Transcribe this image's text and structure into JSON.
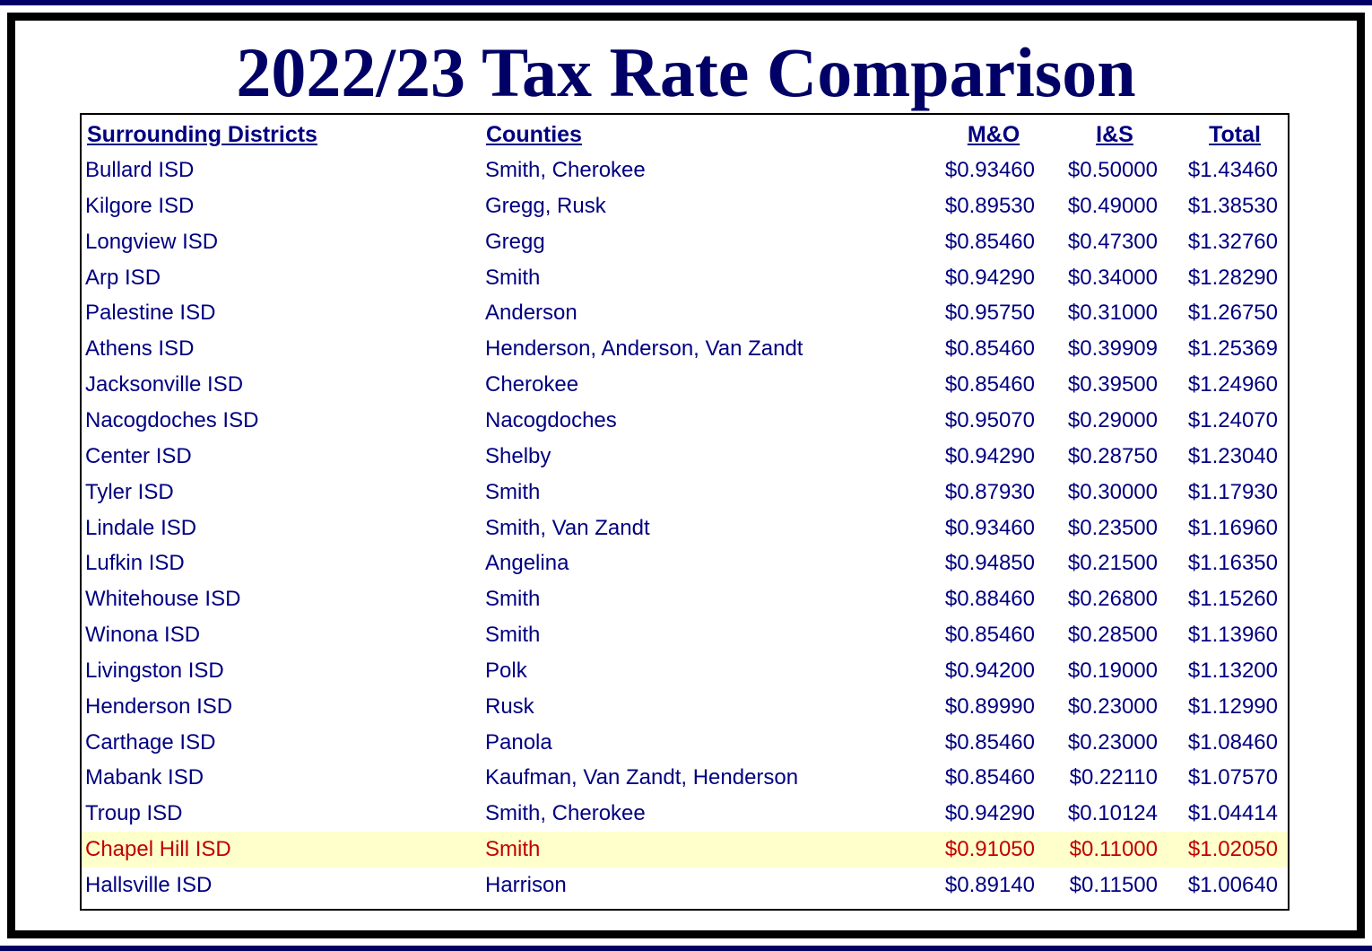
{
  "title": "2022/23 Tax Rate Comparison",
  "headers": {
    "district": "Surrounding Districts",
    "county": "Counties",
    "mo": "M&O",
    "is": "I&S",
    "total": "Total"
  },
  "highlight_color": "#ffffcc",
  "highlight_text_color": "#c00000",
  "text_color": "#000080",
  "rows": [
    {
      "district": "Bullard ISD",
      "county": "Smith, Cherokee",
      "mo": "$0.93460",
      "is": "$0.50000",
      "total": "$1.43460"
    },
    {
      "district": "Kilgore ISD",
      "county": "Gregg, Rusk",
      "mo": "$0.89530",
      "is": "$0.49000",
      "total": "$1.38530"
    },
    {
      "district": "Longview ISD",
      "county": "Gregg",
      "mo": "$0.85460",
      "is": "$0.47300",
      "total": "$1.32760"
    },
    {
      "district": "Arp ISD",
      "county": "Smith",
      "mo": "$0.94290",
      "is": "$0.34000",
      "total": "$1.28290"
    },
    {
      "district": "Palestine ISD",
      "county": "Anderson",
      "mo": "$0.95750",
      "is": "$0.31000",
      "total": "$1.26750"
    },
    {
      "district": "Athens ISD",
      "county": "Henderson, Anderson, Van Zandt",
      "mo": "$0.85460",
      "is": "$0.39909",
      "total": "$1.25369"
    },
    {
      "district": "Jacksonville ISD",
      "county": "Cherokee",
      "mo": "$0.85460",
      "is": "$0.39500",
      "total": "$1.24960"
    },
    {
      "district": "Nacogdoches ISD",
      "county": "Nacogdoches",
      "mo": "$0.95070",
      "is": "$0.29000",
      "total": "$1.24070"
    },
    {
      "district": "Center ISD",
      "county": "Shelby",
      "mo": "$0.94290",
      "is": "$0.28750",
      "total": "$1.23040"
    },
    {
      "district": "Tyler ISD",
      "county": "Smith",
      "mo": "$0.87930",
      "is": "$0.30000",
      "total": "$1.17930"
    },
    {
      "district": "Lindale ISD",
      "county": "Smith, Van Zandt",
      "mo": "$0.93460",
      "is": "$0.23500",
      "total": "$1.16960"
    },
    {
      "district": "Lufkin ISD",
      "county": "Angelina",
      "mo": "$0.94850",
      "is": "$0.21500",
      "total": "$1.16350"
    },
    {
      "district": "Whitehouse ISD",
      "county": "Smith",
      "mo": "$0.88460",
      "is": "$0.26800",
      "total": "$1.15260"
    },
    {
      "district": "Winona ISD",
      "county": "Smith",
      "mo": "$0.85460",
      "is": "$0.28500",
      "total": "$1.13960"
    },
    {
      "district": "Livingston ISD",
      "county": "Polk",
      "mo": "$0.94200",
      "is": "$0.19000",
      "total": "$1.13200"
    },
    {
      "district": "Henderson ISD",
      "county": "Rusk",
      "mo": "$0.89990",
      "is": "$0.23000",
      "total": "$1.12990"
    },
    {
      "district": "Carthage ISD",
      "county": "Panola",
      "mo": "$0.85460",
      "is": "$0.23000",
      "total": "$1.08460"
    },
    {
      "district": "Mabank ISD",
      "county": "Kaufman, Van Zandt, Henderson",
      "mo": "$0.85460",
      "is": "$0.22110",
      "total": "$1.07570"
    },
    {
      "district": "Troup ISD",
      "county": "Smith, Cherokee",
      "mo": "$0.94290",
      "is": "$0.10124",
      "total": "$1.04414"
    },
    {
      "district": "Chapel Hill ISD",
      "county": "Smith",
      "mo": "$0.91050",
      "is": "$0.11000",
      "total": "$1.02050",
      "highlight": true
    },
    {
      "district": "Hallsville ISD",
      "county": "Harrison",
      "mo": "$0.89140",
      "is": "$0.11500",
      "total": "$1.00640"
    }
  ]
}
